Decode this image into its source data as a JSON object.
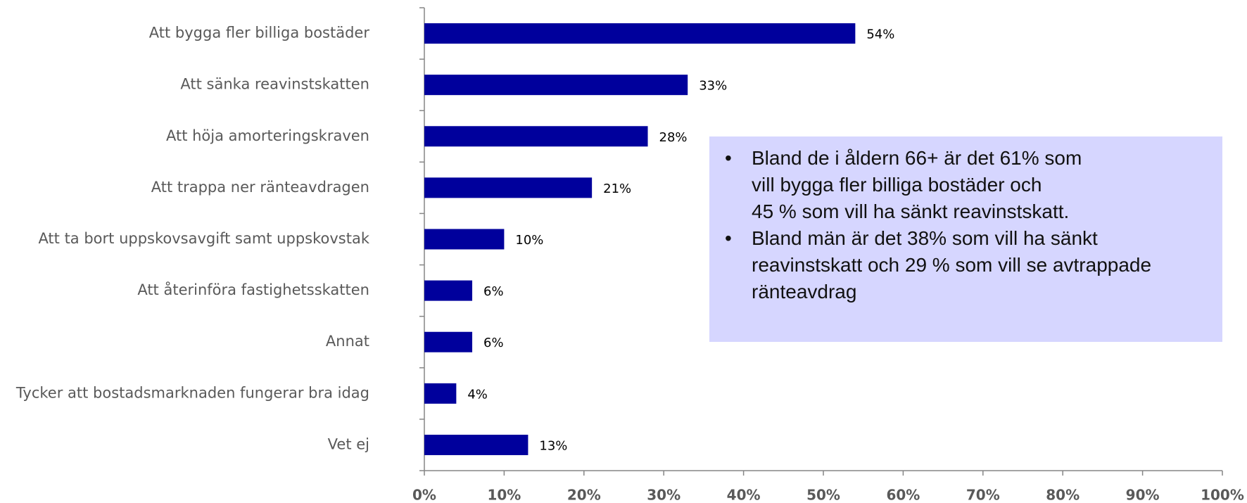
{
  "chart_data": {
    "type": "barh",
    "categories": [
      "Att bygga fler billiga bostäder",
      "Att sänka reavinstskatten",
      "Att höja amorteringskraven",
      "Att trappa ner ränteavdragen",
      "Att ta bort uppskovsavgift samt uppskovstak",
      "Att återinföra fastighetsskatten",
      "Annat",
      "Tycker att bostadsmarknaden fungerar bra idag",
      "Vet ej"
    ],
    "values": [
      54,
      33,
      28,
      21,
      10,
      6,
      6,
      4,
      13
    ],
    "value_labels": [
      "54%",
      "33%",
      "28%",
      "21%",
      "10%",
      "6%",
      "6%",
      "4%",
      "13%"
    ],
    "color": "#00009c",
    "xlim": [
      0,
      100
    ],
    "xticks": [
      {
        "value": 0,
        "label": "0%"
      },
      {
        "value": 10,
        "label": "10%"
      },
      {
        "value": 20,
        "label": "20%"
      },
      {
        "value": 30,
        "label": "30%"
      },
      {
        "value": 40,
        "label": "40%"
      },
      {
        "value": 50,
        "label": "50%"
      },
      {
        "value": 60,
        "label": "60%"
      },
      {
        "value": 70,
        "label": "70%"
      },
      {
        "value": 80,
        "label": "80%"
      },
      {
        "value": 90,
        "label": "90%"
      },
      {
        "value": 100,
        "label": "100%"
      }
    ],
    "grid": false,
    "annotation": [
      [
        "Bland de i åldern 66+ är det 61% som",
        "vill bygga fler billiga bostäder och",
        "45 % som vill ha sänkt reavinstskatt."
      ],
      [
        "Bland män är det 38% som vill ha sänkt",
        "reavinstskatt och 29 % som vill se avtrappade",
        "ränteavdrag"
      ]
    ]
  }
}
